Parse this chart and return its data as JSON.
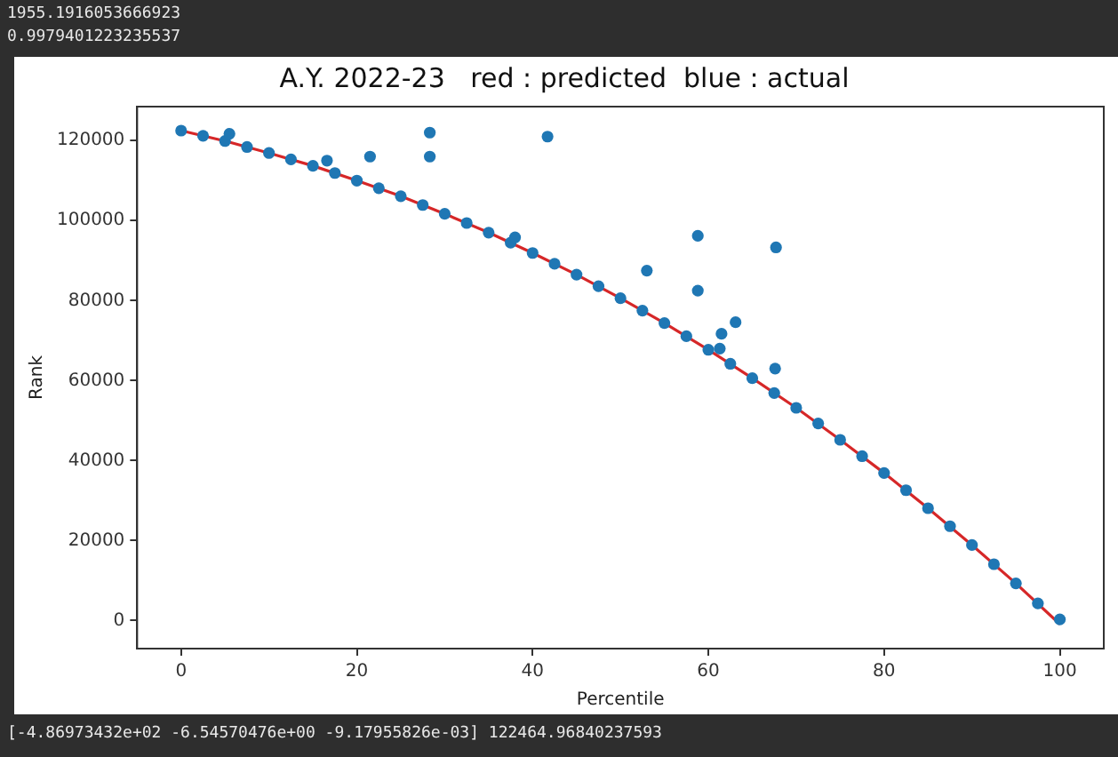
{
  "chart_data": {
    "type": "scatter",
    "title": "A.Y. 2022-23   red : predicted  blue : actual",
    "xlabel": "Percentile",
    "ylabel": "Rank",
    "annotations": [
      "1955.1916053666923",
      "0.9979401223235537",
      "[-4.86973432e+02 -6.54570476e+00 -9.17955826e-03] 122464.96840237593"
    ],
    "xlim": [
      -5,
      105
    ],
    "xticks": [
      0,
      20,
      40,
      60,
      80,
      100
    ],
    "ylim": [
      -7000,
      128500
    ],
    "yticks": [
      0,
      20000,
      40000,
      60000,
      80000,
      100000,
      120000
    ],
    "grid": false,
    "legend": false,
    "series": [
      {
        "type": "scatter",
        "color": "#1f77b4",
        "marker": "circle",
        "x": [
          0,
          2.5,
          5,
          7.5,
          10,
          12.5,
          15,
          17.5,
          20,
          22.5,
          25,
          27.5,
          30,
          32.5,
          35,
          37.5,
          40,
          42.5,
          45,
          47.5,
          50,
          52.5,
          55,
          57.5,
          60,
          62.5,
          65,
          67.5,
          70,
          72.5,
          75,
          77.5,
          80,
          82.5,
          85,
          87.5,
          90,
          92.5,
          95,
          97.5,
          100,
          5.5,
          16.6,
          21.5,
          28.3,
          28.3,
          41.7,
          38,
          58.8,
          67.7,
          53,
          58.8,
          63.1,
          61.5,
          61.3,
          67.6
        ],
        "values": [
          122500,
          121200,
          119900,
          118400,
          116900,
          115300,
          113700,
          111900,
          110000,
          108100,
          106100,
          103900,
          101700,
          99400,
          97000,
          94500,
          91900,
          89200,
          86500,
          83600,
          80600,
          77500,
          74400,
          71100,
          67700,
          64200,
          60600,
          56900,
          53200,
          49300,
          45200,
          41100,
          36900,
          32600,
          28100,
          23600,
          18900,
          14100,
          9300,
          4300,
          300,
          121700,
          115000,
          116000,
          122000,
          116000,
          121000,
          95800,
          96200,
          93300,
          87500,
          82500,
          74600,
          71700,
          68000,
          63000
        ]
      },
      {
        "type": "line",
        "color": "#d62728",
        "marker": "none",
        "line_style": "solid",
        "x": [
          0,
          5,
          10,
          15,
          20,
          25,
          30,
          35,
          40,
          45,
          50,
          55,
          60,
          65,
          70,
          75,
          80,
          85,
          90,
          95,
          100
        ],
        "values": [
          122500,
          119900,
          116900,
          113700,
          110000,
          106100,
          101700,
          97000,
          91900,
          86500,
          80600,
          74400,
          67700,
          60600,
          53200,
          45200,
          36900,
          28100,
          18900,
          9300,
          -900
        ]
      }
    ]
  }
}
